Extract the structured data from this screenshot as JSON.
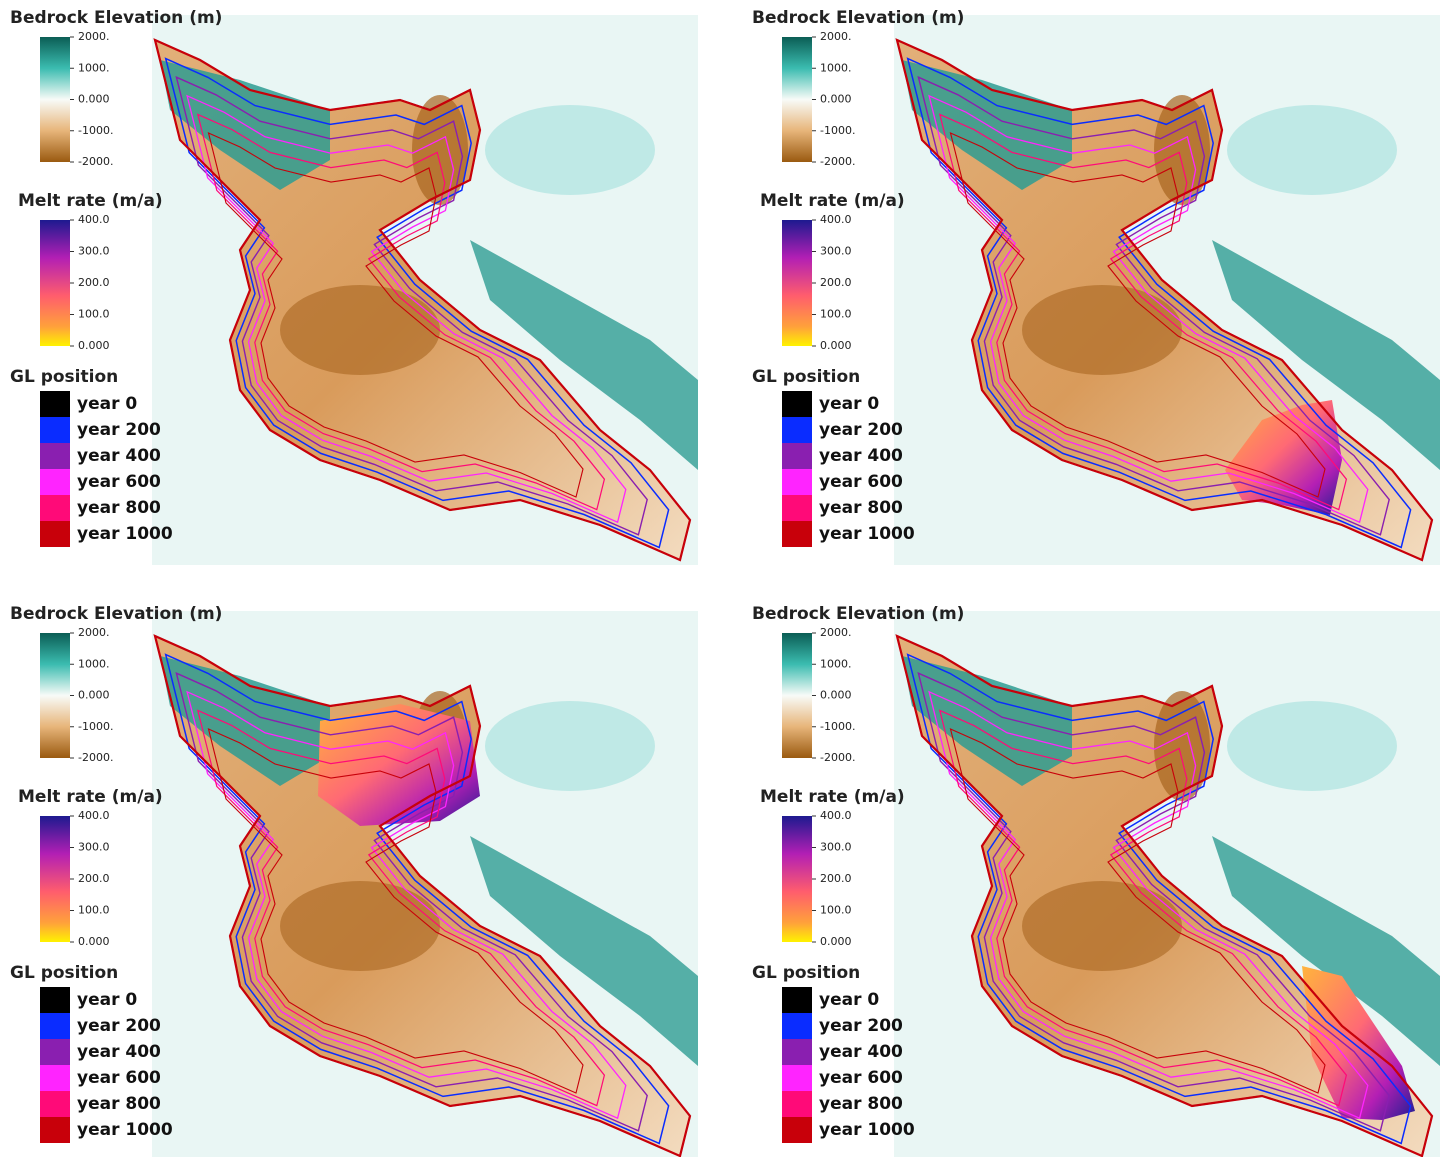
{
  "panels": [
    {
      "bedrock": {
        "title": "Bedrock Elevation (m)",
        "ticks": [
          "2000.",
          "1000.",
          "0.000",
          "-1000.",
          "-2000."
        ]
      },
      "melt": {
        "title": "Melt rate (m/a)",
        "ticks": [
          "400.0",
          "300.0",
          "200.0",
          "100.0",
          "0.000"
        ]
      },
      "gl": {
        "title": "GL position",
        "entries": [
          {
            "label": "year 0",
            "color": "#000000"
          },
          {
            "label": "year 200",
            "color": "#0a2cff"
          },
          {
            "label": "year 400",
            "color": "#8a1fb0"
          },
          {
            "label": "year 600",
            "color": "#ff24ff"
          },
          {
            "label": "year 800",
            "color": "#ff0a78"
          },
          {
            "label": "year 1000",
            "color": "#c8000a"
          }
        ]
      }
    },
    {
      "bedrock": {
        "title": "Bedrock Elevation (m)",
        "ticks": [
          "2000.",
          "1000.",
          "0.000",
          "-1000.",
          "-2000."
        ]
      },
      "melt": {
        "title": "Melt rate (m/a)",
        "ticks": [
          "400.0",
          "300.0",
          "200.0",
          "100.0",
          "0.000"
        ]
      },
      "gl": {
        "title": "GL position",
        "entries": [
          {
            "label": "year 0",
            "color": "#000000"
          },
          {
            "label": "year 200",
            "color": "#0a2cff"
          },
          {
            "label": "year 400",
            "color": "#8a1fb0"
          },
          {
            "label": "year 600",
            "color": "#ff24ff"
          },
          {
            "label": "year 800",
            "color": "#ff0a78"
          },
          {
            "label": "year 1000",
            "color": "#c8000a"
          }
        ]
      }
    },
    {
      "bedrock": {
        "title": "Bedrock Elevation (m)",
        "ticks": [
          "2000.",
          "1000.",
          "0.000",
          "-1000.",
          "-2000."
        ]
      },
      "melt": {
        "title": "Melt rate (m/a)",
        "ticks": [
          "400.0",
          "300.0",
          "200.0",
          "100.0",
          "0.000"
        ]
      },
      "gl": {
        "title": "GL position",
        "entries": [
          {
            "label": "year 0",
            "color": "#000000"
          },
          {
            "label": "year 200",
            "color": "#0a2cff"
          },
          {
            "label": "year 400",
            "color": "#8a1fb0"
          },
          {
            "label": "year 600",
            "color": "#ff24ff"
          },
          {
            "label": "year 800",
            "color": "#ff0a78"
          },
          {
            "label": "year 1000",
            "color": "#c8000a"
          }
        ]
      }
    },
    {
      "bedrock": {
        "title": "Bedrock Elevation (m)",
        "ticks": [
          "2000.",
          "1000.",
          "0.000",
          "-1000.",
          "-2000."
        ]
      },
      "melt": {
        "title": "Melt rate (m/a)",
        "ticks": [
          "400.0",
          "300.0",
          "200.0",
          "100.0",
          "0.000"
        ]
      },
      "gl": {
        "title": "GL position",
        "entries": [
          {
            "label": "year 0",
            "color": "#000000"
          },
          {
            "label": "year 200",
            "color": "#0a2cff"
          },
          {
            "label": "year 400",
            "color": "#8a1fb0"
          },
          {
            "label": "year 600",
            "color": "#ff24ff"
          },
          {
            "label": "year 800",
            "color": "#ff0a78"
          },
          {
            "label": "year 1000",
            "color": "#c8000a"
          }
        ]
      }
    }
  ]
}
